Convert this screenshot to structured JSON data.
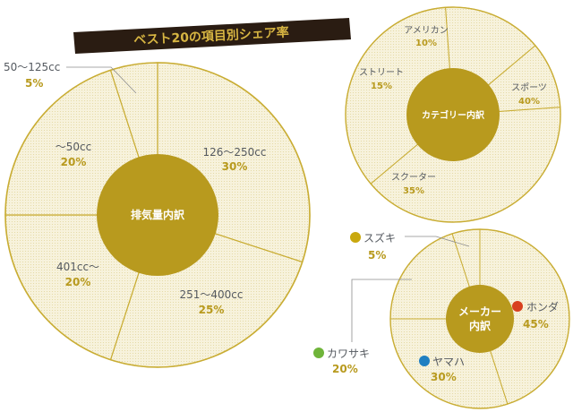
{
  "banner": {
    "title": "ベスト20の項目別シェア率"
  },
  "colors": {
    "gold": "#b89a1e",
    "pie_fill": "#f6f1da",
    "divider": "#c9ad34",
    "banner_bg": "#2a1c12",
    "banner_text": "#d7b542",
    "label_text": "#555a60"
  },
  "chart_data": [
    {
      "type": "pie",
      "title": "排気量内訳",
      "categories": [
        "126〜250cc",
        "251〜400cc",
        "401cc〜",
        "〜50cc",
        "50〜125cc"
      ],
      "values": [
        30,
        25,
        20,
        20,
        5
      ],
      "value_labels": [
        "30%",
        "25%",
        "20%",
        "20%",
        "5%"
      ]
    },
    {
      "type": "pie",
      "title": "カテゴリー内訳",
      "categories": [
        "スポーツ",
        "スクーター",
        "ストリート",
        "アメリカン"
      ],
      "values": [
        40,
        35,
        15,
        10
      ],
      "value_labels": [
        "40%",
        "35%",
        "15%",
        "10%"
      ]
    },
    {
      "type": "pie",
      "title": "メーカー内訳",
      "title_lines": [
        "メーカー",
        "内訳"
      ],
      "categories": [
        "ホンダ",
        "ヤマハ",
        "カワサキ",
        "スズキ"
      ],
      "values": [
        45,
        30,
        20,
        5
      ],
      "value_labels": [
        "45%",
        "30%",
        "20%",
        "5%"
      ],
      "marker_colors": [
        "#d8401f",
        "#1f7fc1",
        "#6fb43a",
        "#c9a80e"
      ]
    }
  ]
}
